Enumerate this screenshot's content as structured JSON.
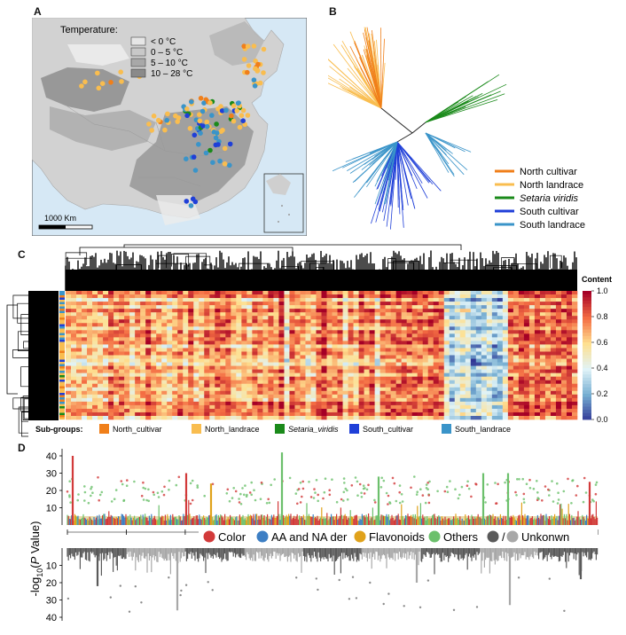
{
  "panels": {
    "a": {
      "letter": "A"
    },
    "b": {
      "letter": "B"
    },
    "c": {
      "letter": "C"
    },
    "d": {
      "letter": "D"
    }
  },
  "map": {
    "legend_title": "Temperature:",
    "legend_items": [
      {
        "label": "< 0 °C",
        "color": "#e6e6e6"
      },
      {
        "label": "0 – 5 °C",
        "color": "#c8c8c8"
      },
      {
        "label": "5 – 10 °C",
        "color": "#a8a8a8"
      },
      {
        "label": "10 – 28 °C",
        "color": "#8a8a8a"
      }
    ],
    "scale_label": "1000 Km"
  },
  "tree": {
    "legend": [
      {
        "label": "North cultivar",
        "color": "#f07f1a",
        "italic": false
      },
      {
        "label": "North landrace",
        "color": "#f9bd4f",
        "italic": false
      },
      {
        "label": "Setaria viridis",
        "color": "#1a8a1a",
        "italic": true
      },
      {
        "label": "South cultivar",
        "color": "#1f3fd8",
        "italic": false
      },
      {
        "label": "South landrace",
        "color": "#3a94c9",
        "italic": false
      }
    ]
  },
  "heatmap": {
    "colorbar_title": "Content",
    "colorbar_ticks": [
      "1.0",
      "0.8",
      "0.6",
      "0.4",
      "0.2",
      "0.0"
    ],
    "subgroups_label": "Sub-groups:",
    "subgroups": [
      {
        "label": "North_cultivar",
        "color": "#f07f1a",
        "italic": false
      },
      {
        "label": "North_landrace",
        "color": "#f9bd4f",
        "italic": false
      },
      {
        "label": "Setaria_viridis",
        "color": "#1a8a1a",
        "italic": true
      },
      {
        "label": "South_cultivar",
        "color": "#1f3fd8",
        "italic": false
      },
      {
        "label": "South_landrace",
        "color": "#3a94c9",
        "italic": false
      }
    ]
  },
  "manhattan": {
    "ylabel": "-log10(P Value)",
    "top_ticks": [
      "40",
      "30",
      "20",
      "10"
    ],
    "bottom_ticks": [
      "10",
      "20",
      "30",
      "40"
    ],
    "legend": [
      {
        "label": "Color",
        "color": "#d23a3a"
      },
      {
        "label": "AA and NA der",
        "color": "#3d7fc4"
      },
      {
        "label": "Flavonoids",
        "color": "#e0a21b"
      },
      {
        "label": "Others",
        "color": "#6cc06c"
      },
      {
        "label": "/",
        "color": "#5a5a5a"
      },
      {
        "label": "Unkonwn",
        "color": "#a8a8a8"
      }
    ]
  }
}
